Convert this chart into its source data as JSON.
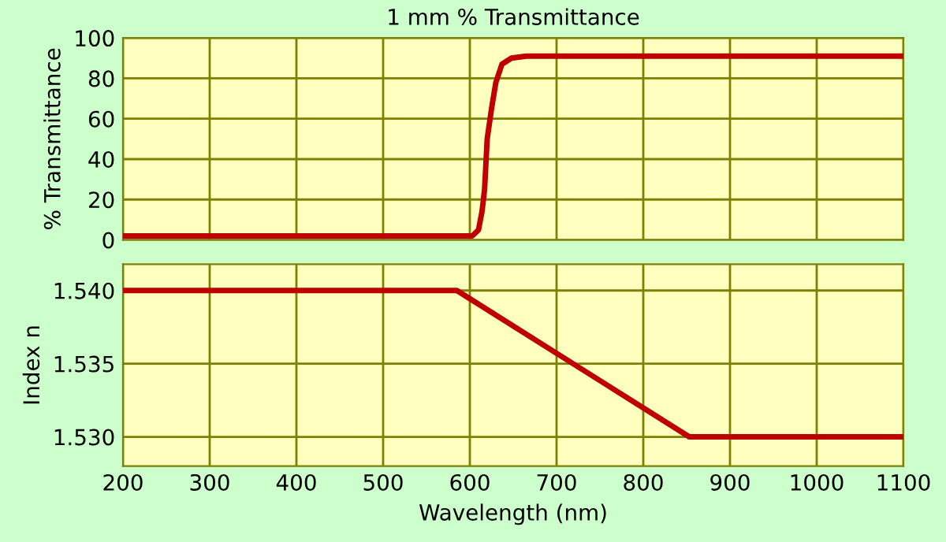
{
  "chart_data": [
    {
      "type": "line",
      "title": "1 mm % Transmittance",
      "ylabel": "% Transmittance",
      "xlim": [
        200,
        1100
      ],
      "xticks": [
        200,
        300,
        400,
        500,
        600,
        700,
        800,
        900,
        1000,
        1100
      ],
      "ylim": [
        0,
        100
      ],
      "yticks": [
        0,
        20,
        40,
        60,
        80,
        100
      ],
      "grid": true,
      "tick_labels": "y",
      "series": [
        {
          "color": "#c00000",
          "x": [
            200,
            603,
            610,
            614,
            617,
            620,
            625,
            630,
            637,
            648,
            665,
            1100
          ],
          "values": [
            2,
            2,
            5,
            14,
            25,
            50,
            65,
            78,
            87,
            90,
            91,
            91
          ]
        }
      ]
    },
    {
      "type": "line",
      "xlabel": "Wavelength (nm)",
      "ylabel": "Index n",
      "xlim": [
        200,
        1100
      ],
      "xticks": [
        200,
        300,
        400,
        500,
        600,
        700,
        800,
        900,
        1000,
        1100
      ],
      "ylim": [
        1.528,
        1.5418
      ],
      "yticks": [
        {
          "value": 1.53,
          "label": "1.530"
        },
        {
          "value": 1.535,
          "label": "1.535"
        },
        {
          "value": 1.54,
          "label": "1.540"
        }
      ],
      "grid": true,
      "series": [
        {
          "color": "#c00000",
          "x": [
            200,
            585,
            853,
            1100
          ],
          "values": [
            1.54,
            1.54,
            1.53,
            1.53
          ]
        }
      ]
    }
  ]
}
